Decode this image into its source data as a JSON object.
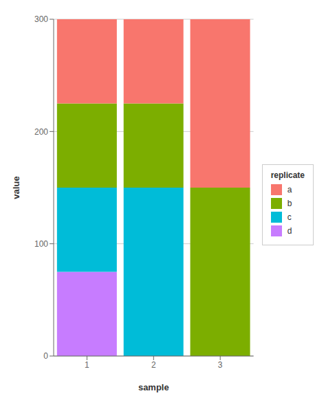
{
  "chart_data": {
    "type": "bar",
    "stacked": true,
    "categories": [
      "1",
      "2",
      "3"
    ],
    "series": [
      {
        "name": "a",
        "color": "#F8766D",
        "values": [
          75,
          75,
          150
        ]
      },
      {
        "name": "b",
        "color": "#7CAE00",
        "values": [
          75,
          75,
          150
        ]
      },
      {
        "name": "c",
        "color": "#00BCD8",
        "values": [
          75,
          150,
          0
        ]
      },
      {
        "name": "d",
        "color": "#C77CFF",
        "values": [
          75,
          0,
          0
        ]
      }
    ],
    "xlabel": "sample",
    "ylabel": "value",
    "ylim": [
      0,
      300
    ],
    "yticks": [
      0,
      100,
      200,
      300
    ],
    "grid": true,
    "legend": "right",
    "legend_title": "replicate"
  }
}
